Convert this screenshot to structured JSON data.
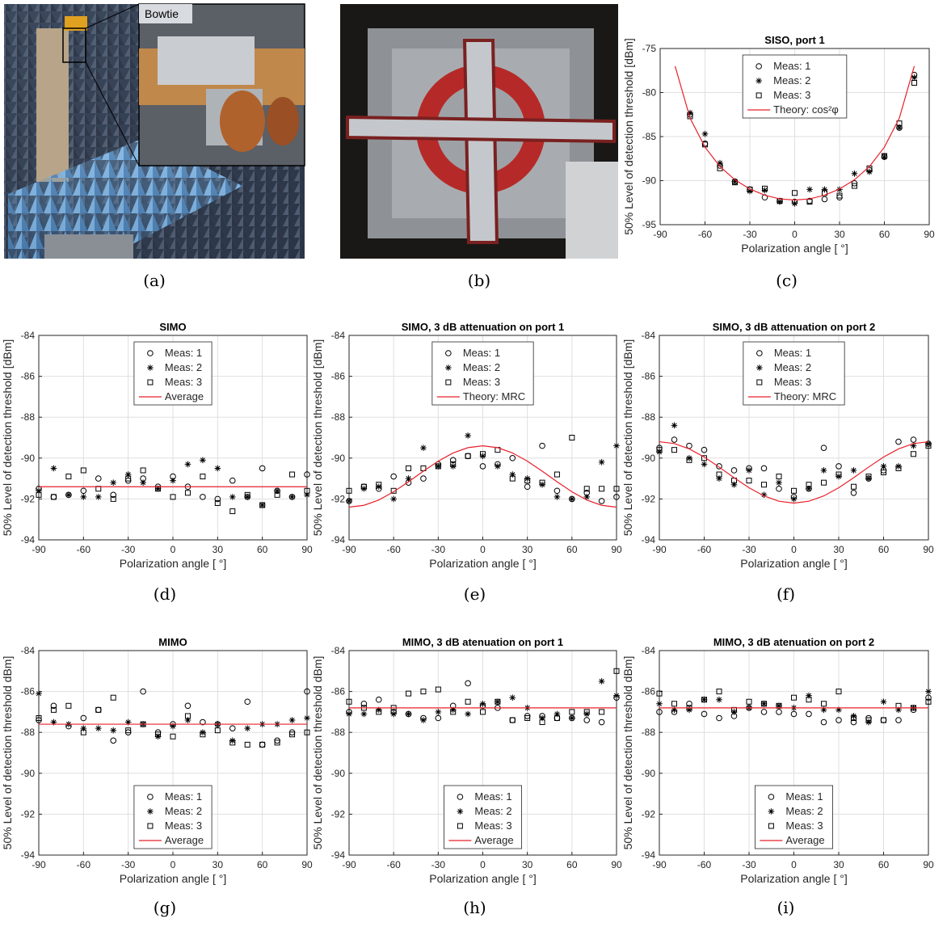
{
  "photos": [
    {
      "caption": "(a)",
      "label": "Bowtie"
    },
    {
      "caption": "(b)"
    }
  ],
  "chart_data": [
    {
      "type": "scatter",
      "title": "SISO, port 1",
      "caption": "(c)",
      "xlabel": "Polarization angle [ °]",
      "ylabel": "50% Level of detection threshold [dBm]",
      "xlim": [
        -90,
        90
      ],
      "ylim": [
        -95,
        -75
      ],
      "xticks": [
        -90,
        -60,
        -30,
        0,
        30,
        60,
        90
      ],
      "yticks": [
        -95,
        -90,
        -85,
        -80,
        -75
      ],
      "grid": true,
      "legend": "top",
      "x": [
        -70,
        -60,
        -50,
        -40,
        -30,
        -20,
        -10,
        0,
        10,
        20,
        30,
        40,
        50,
        60,
        70,
        80
      ],
      "series": [
        {
          "name": "Meas: 1",
          "color": "#000000",
          "marker": "circle",
          "values": [
            -82.5,
            -85.8,
            -88.3,
            -90.1,
            -91.0,
            -91.9,
            -92.3,
            -92.4,
            -92.3,
            -92.1,
            -91.9,
            -90.3,
            -88.8,
            -87.3,
            -84.0,
            -78.0
          ]
        },
        {
          "name": "Meas: 2",
          "color": "#000000",
          "marker": "asterisk",
          "values": [
            -82.3,
            -84.7,
            -88.0,
            -90.1,
            -91.2,
            -91.1,
            -92.4,
            -92.6,
            -91.0,
            -91.0,
            -91.0,
            -89.2,
            -89.0,
            -87.3,
            -84.0,
            -78.3
          ]
        },
        {
          "name": "Meas: 3",
          "color": "#000000",
          "marker": "square",
          "values": [
            -82.7,
            -85.9,
            -88.6,
            -90.2,
            -91.0,
            -90.9,
            -92.3,
            -91.4,
            -92.4,
            -91.4,
            -91.7,
            -90.6,
            -88.6,
            -87.2,
            -83.5,
            -78.9
          ]
        },
        {
          "name": "Theory: cos²φ",
          "color": "#e8202a",
          "marker": "none",
          "x": [
            -80,
            -70,
            -60,
            -50,
            -40,
            -30,
            -20,
            -10,
            0,
            10,
            20,
            30,
            40,
            50,
            60,
            70,
            80
          ],
          "values": [
            -77.0,
            -82.9,
            -86.2,
            -88.4,
            -89.9,
            -90.95,
            -91.66,
            -92.07,
            -92.2,
            -92.07,
            -91.66,
            -90.95,
            -89.9,
            -88.4,
            -86.2,
            -82.9,
            -77.0
          ]
        }
      ]
    },
    {
      "type": "scatter",
      "title": "SIMO",
      "caption": "(d)",
      "xlabel": "Polarization angle [ °]",
      "ylabel": "50% Level of detection threshold [dBm]",
      "xlim": [
        -90,
        90
      ],
      "ylim": [
        -94,
        -84
      ],
      "xticks": [
        -90,
        -60,
        -30,
        0,
        30,
        60,
        90
      ],
      "yticks": [
        -94,
        -92,
        -90,
        -88,
        -86,
        -84
      ],
      "grid": true,
      "legend": "top",
      "x": [
        -90,
        -80,
        -70,
        -60,
        -50,
        -40,
        -30,
        -20,
        -10,
        0,
        10,
        20,
        30,
        40,
        50,
        60,
        70,
        80,
        90
      ],
      "series": [
        {
          "name": "Meas: 1",
          "color": "#000000",
          "marker": "circle",
          "values": [
            -91.5,
            -91.9,
            -91.8,
            -91.6,
            -91.0,
            -91.8,
            -91.1,
            -91.0,
            -91.4,
            -90.9,
            -91.4,
            -91.9,
            -92.0,
            -91.1,
            -91.9,
            -90.5,
            -91.6,
            -91.9,
            -90.8
          ]
        },
        {
          "name": "Meas: 2",
          "color": "#000000",
          "marker": "asterisk",
          "values": [
            -91.6,
            -90.5,
            -91.8,
            -91.9,
            -91.9,
            -91.2,
            -90.8,
            -91.2,
            -91.5,
            -91.1,
            -90.3,
            -90.1,
            -90.5,
            -91.9,
            -91.9,
            -92.3,
            -91.6,
            -91.9,
            -91.8
          ]
        },
        {
          "name": "Meas: 3",
          "color": "#000000",
          "marker": "square",
          "values": [
            -91.8,
            -91.9,
            -90.9,
            -90.6,
            -91.5,
            -92.0,
            -91.0,
            -90.6,
            -91.5,
            -91.9,
            -91.7,
            -90.9,
            -92.2,
            -92.6,
            -91.8,
            -92.3,
            -91.8,
            -90.8,
            -91.6
          ]
        },
        {
          "name": "Average",
          "color": "#e8202a",
          "marker": "none",
          "x": [
            -90,
            90
          ],
          "values": [
            -91.4,
            -91.4
          ]
        }
      ]
    },
    {
      "type": "scatter",
      "title": "SIMO, 3 dB attenuation on port 1",
      "caption": "(e)",
      "xlabel": "Polarization angle [ °]",
      "ylabel": "50% Level of detection threshold [dBm]",
      "xlim": [
        -90,
        90
      ],
      "ylim": [
        -94,
        -84
      ],
      "xticks": [
        -90,
        -60,
        -30,
        0,
        30,
        60,
        90
      ],
      "yticks": [
        -94,
        -92,
        -90,
        -88,
        -86,
        -84
      ],
      "grid": true,
      "legend": "top",
      "x": [
        -90,
        -80,
        -70,
        -60,
        -50,
        -40,
        -30,
        -20,
        -10,
        0,
        10,
        20,
        30,
        40,
        50,
        60,
        70,
        80,
        90
      ],
      "series": [
        {
          "name": "Meas: 1",
          "color": "#000000",
          "marker": "circle",
          "values": [
            -92.1,
            -91.4,
            -91.5,
            -90.9,
            -91.2,
            -91.0,
            -90.3,
            -90.1,
            -89.9,
            -90.4,
            -90.3,
            -90.0,
            -91.4,
            -89.4,
            -91.6,
            -92.0,
            -91.7,
            -92.1,
            -91.9
          ]
        },
        {
          "name": "Meas: 2",
          "color": "#000000",
          "marker": "asterisk",
          "values": [
            -92.1,
            -91.5,
            -91.4,
            -92.0,
            -91.0,
            -89.5,
            -90.4,
            -90.4,
            -88.9,
            -89.9,
            -90.4,
            -90.8,
            -91.0,
            -91.3,
            -91.9,
            -92.0,
            -91.9,
            -90.2,
            -89.4
          ]
        },
        {
          "name": "Meas: 3",
          "color": "#000000",
          "marker": "square",
          "values": [
            -91.6,
            -91.4,
            -91.3,
            -91.6,
            -90.5,
            -90.5,
            -90.4,
            -90.3,
            -89.9,
            -89.8,
            -89.6,
            -91.0,
            -91.1,
            -91.2,
            -90.8,
            -89.0,
            -91.5,
            -91.5,
            -91.5
          ]
        },
        {
          "name": "Theory: MRC",
          "color": "#e8202a",
          "marker": "none",
          "x": [
            -90,
            -80,
            -70,
            -60,
            -50,
            -40,
            -30,
            -20,
            -10,
            0,
            10,
            20,
            30,
            40,
            50,
            60,
            70,
            80,
            90
          ],
          "values": [
            -92.4,
            -92.31,
            -92.05,
            -91.65,
            -91.16,
            -90.64,
            -90.15,
            -89.75,
            -89.49,
            -89.4,
            -89.49,
            -89.75,
            -90.15,
            -90.64,
            -91.16,
            -91.65,
            -92.05,
            -92.31,
            -92.4
          ]
        }
      ]
    },
    {
      "type": "scatter",
      "title": "SIMO, 3 dB attenuation on port 2",
      "caption": "(f)",
      "xlabel": "Polarization angle [ °]",
      "ylabel": "50% Level of detection threshold [dBm]",
      "xlim": [
        -90,
        90
      ],
      "ylim": [
        -94,
        -84
      ],
      "xticks": [
        -90,
        -60,
        -30,
        0,
        30,
        60,
        90
      ],
      "yticks": [
        -94,
        -92,
        -90,
        -88,
        -86,
        -84
      ],
      "grid": true,
      "legend": "top",
      "x": [
        -90,
        -80,
        -70,
        -60,
        -50,
        -40,
        -30,
        -20,
        -10,
        0,
        10,
        20,
        30,
        40,
        50,
        60,
        70,
        80,
        90
      ],
      "series": [
        {
          "name": "Meas: 1",
          "color": "#000000",
          "marker": "circle",
          "values": [
            -89.5,
            -89.1,
            -89.4,
            -89.6,
            -90.4,
            -90.6,
            -90.5,
            -90.5,
            -91.5,
            -91.9,
            -91.5,
            -89.5,
            -90.4,
            -91.7,
            -91.0,
            -90.6,
            -89.2,
            -89.1,
            -89.3
          ]
        },
        {
          "name": "Meas: 2",
          "color": "#000000",
          "marker": "asterisk",
          "values": [
            -89.7,
            -88.4,
            -90.0,
            -90.3,
            -91.0,
            -91.3,
            -90.6,
            -91.8,
            -91.2,
            -92.0,
            -91.5,
            -90.6,
            -90.9,
            -90.6,
            -91.0,
            -90.4,
            -90.4,
            -89.4,
            -89.3
          ]
        },
        {
          "name": "Meas: 3",
          "color": "#000000",
          "marker": "square",
          "values": [
            -89.6,
            -89.6,
            -90.1,
            -90.0,
            -90.8,
            -91.1,
            -91.1,
            -91.3,
            -90.9,
            -91.6,
            -91.3,
            -91.2,
            -90.8,
            -91.4,
            -90.9,
            -90.7,
            -90.5,
            -89.8,
            -89.4
          ]
        },
        {
          "name": "Theory: MRC",
          "color": "#e8202a",
          "marker": "none",
          "x": [
            -90,
            -80,
            -70,
            -60,
            -50,
            -40,
            -30,
            -20,
            -10,
            0,
            10,
            20,
            30,
            40,
            50,
            60,
            70,
            80,
            90
          ],
          "values": [
            -89.2,
            -89.29,
            -89.55,
            -89.95,
            -90.44,
            -90.96,
            -91.45,
            -91.85,
            -92.11,
            -92.2,
            -92.11,
            -91.85,
            -91.45,
            -90.96,
            -90.44,
            -89.95,
            -89.55,
            -89.29,
            -89.2
          ]
        }
      ]
    },
    {
      "type": "scatter",
      "title": "MIMO",
      "caption": "(g)",
      "xlabel": "Polarization angle [ °]",
      "ylabel": "50% Level of detection threshold dBm]",
      "xlim": [
        -90,
        90
      ],
      "ylim": [
        -94,
        -84
      ],
      "xticks": [
        -90,
        -60,
        -30,
        0,
        30,
        60,
        90
      ],
      "yticks": [
        -94,
        -92,
        -90,
        -88,
        -86,
        -84
      ],
      "grid": true,
      "legend": "bottom",
      "x": [
        -90,
        -80,
        -70,
        -60,
        -50,
        -40,
        -30,
        -20,
        -10,
        0,
        10,
        20,
        30,
        40,
        50,
        60,
        70,
        80,
        90
      ],
      "series": [
        {
          "name": "Meas: 1",
          "color": "#000000",
          "marker": "circle",
          "values": [
            -87.4,
            -86.7,
            -87.7,
            -87.3,
            -86.9,
            -88.4,
            -88.0,
            -86.0,
            -88.0,
            -87.6,
            -86.7,
            -87.5,
            -87.6,
            -87.8,
            -86.5,
            -88.6,
            -88.4,
            -88.0,
            -86.0
          ]
        },
        {
          "name": "Meas: 2",
          "color": "#000000",
          "marker": "asterisk",
          "values": [
            -86.1,
            -87.5,
            -87.6,
            -87.8,
            -87.8,
            -87.9,
            -87.5,
            -87.6,
            -88.2,
            -87.7,
            -87.4,
            -88.0,
            -87.6,
            -88.4,
            -87.8,
            -87.6,
            -87.6,
            -87.4,
            -87.3
          ]
        },
        {
          "name": "Meas: 3",
          "color": "#000000",
          "marker": "square",
          "values": [
            -87.3,
            -86.9,
            -86.7,
            -88.0,
            -86.9,
            -86.3,
            -87.9,
            -87.6,
            -88.1,
            -88.2,
            -87.2,
            -88.1,
            -87.9,
            -88.5,
            -88.6,
            -88.6,
            -88.5,
            -88.1,
            -88.0
          ]
        },
        {
          "name": "Average",
          "color": "#e8202a",
          "marker": "none",
          "x": [
            -90,
            90
          ],
          "values": [
            -87.6,
            -87.6
          ]
        }
      ]
    },
    {
      "type": "scatter",
      "title": "MIMO, 3 dB atenuation on port 1",
      "caption": "(h)",
      "xlabel": "Polarization angle [ °]",
      "ylabel": "50% Level of detection threshold dBm]",
      "xlim": [
        -90,
        90
      ],
      "ylim": [
        -94,
        -84
      ],
      "xticks": [
        -90,
        -60,
        -30,
        0,
        30,
        60,
        90
      ],
      "yticks": [
        -94,
        -92,
        -90,
        -88,
        -86,
        -84
      ],
      "grid": true,
      "legend": "bottom",
      "x": [
        -90,
        -80,
        -70,
        -60,
        -50,
        -40,
        -30,
        -20,
        -10,
        0,
        10,
        20,
        30,
        40,
        50,
        60,
        70,
        80,
        90
      ],
      "series": [
        {
          "name": "Meas: 1",
          "color": "#000000",
          "marker": "circle",
          "values": [
            -87.0,
            -86.6,
            -86.4,
            -87.0,
            -87.1,
            -87.3,
            -87.3,
            -86.7,
            -85.6,
            -86.7,
            -86.8,
            -87.4,
            -87.2,
            -87.2,
            -87.3,
            -87.3,
            -87.4,
            -87.5,
            -86.3
          ]
        },
        {
          "name": "Meas: 2",
          "color": "#000000",
          "marker": "asterisk",
          "values": [
            -87.1,
            -87.1,
            -86.9,
            -87.1,
            -87.1,
            -87.4,
            -87.0,
            -86.9,
            -87.1,
            -86.6,
            -86.5,
            -86.3,
            -86.8,
            -87.3,
            -87.1,
            -87.3,
            -87.1,
            -85.5,
            -86.2
          ]
        },
        {
          "name": "Meas: 3",
          "color": "#000000",
          "marker": "square",
          "values": [
            -86.5,
            -86.8,
            -87.0,
            -86.8,
            -86.1,
            -86.0,
            -85.9,
            -87.0,
            -86.5,
            -87.0,
            -86.5,
            -87.4,
            -87.3,
            -87.5,
            -87.3,
            -87.0,
            -87.0,
            -87.0,
            -85.0
          ]
        },
        {
          "name": "Average",
          "color": "#e8202a",
          "marker": "none",
          "x": [
            -90,
            90
          ],
          "values": [
            -86.8,
            -86.8
          ]
        }
      ]
    },
    {
      "type": "scatter",
      "title": "MIMO, 3 dB atenuation on port 2",
      "caption": "(i)",
      "xlabel": "Polarization angle [ °]",
      "ylabel": "50% Level of detection threshold dBm]",
      "xlim": [
        -90,
        90
      ],
      "ylim": [
        -94,
        -84
      ],
      "xticks": [
        -90,
        -60,
        -30,
        0,
        30,
        60,
        90
      ],
      "yticks": [
        -94,
        -92,
        -90,
        -88,
        -86,
        -84
      ],
      "grid": true,
      "legend": "bottom",
      "x": [
        -90,
        -80,
        -70,
        -60,
        -50,
        -40,
        -30,
        -20,
        -10,
        0,
        10,
        20,
        30,
        40,
        50,
        60,
        70,
        80,
        90
      ],
      "series": [
        {
          "name": "Meas: 1",
          "color": "#000000",
          "marker": "circle",
          "values": [
            -87.0,
            -87.0,
            -86.6,
            -87.1,
            -87.3,
            -87.2,
            -86.8,
            -87.0,
            -87.0,
            -87.1,
            -87.1,
            -87.5,
            -87.4,
            -87.5,
            -87.3,
            -87.4,
            -87.4,
            -86.9,
            -86.3
          ]
        },
        {
          "name": "Meas: 2",
          "color": "#000000",
          "marker": "asterisk",
          "values": [
            -86.6,
            -86.9,
            -86.9,
            -86.4,
            -86.4,
            -87.0,
            -86.8,
            -86.6,
            -86.7,
            -86.8,
            -86.2,
            -86.9,
            -86.9,
            -87.2,
            -87.5,
            -86.5,
            -86.9,
            -86.8,
            -86.0
          ]
        },
        {
          "name": "Meas: 3",
          "color": "#000000",
          "marker": "square",
          "values": [
            -86.1,
            -86.6,
            -86.8,
            -86.4,
            -86.0,
            -86.9,
            -86.5,
            -86.6,
            -86.7,
            -86.3,
            -86.4,
            -86.6,
            -86.0,
            -87.3,
            -87.4,
            -87.4,
            -86.7,
            -86.8,
            -86.5
          ]
        },
        {
          "name": "Average",
          "color": "#e8202a",
          "marker": "none",
          "x": [
            -90,
            90
          ],
          "values": [
            -86.8,
            -86.8
          ]
        }
      ]
    }
  ]
}
